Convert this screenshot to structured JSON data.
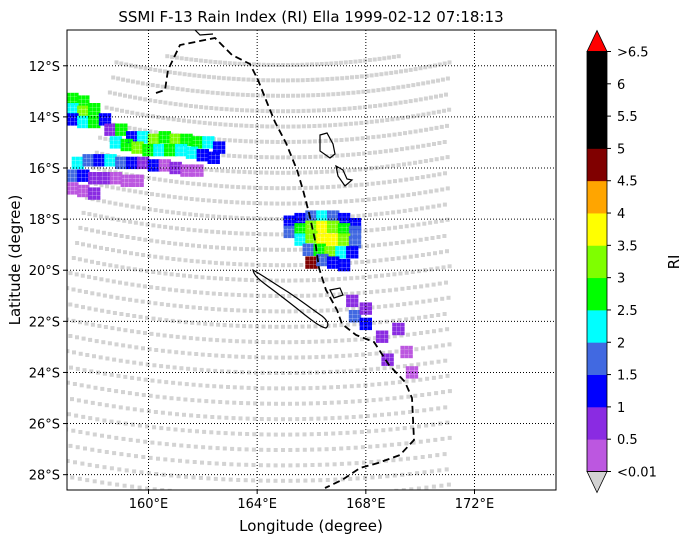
{
  "chart_data": {
    "type": "heatmap",
    "title": "SSMI F-13 Rain Index (RI) Ella 1999-02-12 07:18:13",
    "xlabel": "Longitude (degree)",
    "ylabel": "Latitude (degree)",
    "xlim": [
      157.0,
      175.0
    ],
    "ylim": [
      -28.6,
      -10.6
    ],
    "x_ticks": [
      {
        "value": 160,
        "label": "160°E"
      },
      {
        "value": 164,
        "label": "164°E"
      },
      {
        "value": 168,
        "label": "168°E"
      },
      {
        "value": 172,
        "label": "172°E"
      }
    ],
    "y_ticks": [
      {
        "value": -12,
        "label": "12°S"
      },
      {
        "value": -14,
        "label": "14°S"
      },
      {
        "value": -16,
        "label": "16°S"
      },
      {
        "value": -18,
        "label": "18°S"
      },
      {
        "value": -20,
        "label": "20°S"
      },
      {
        "value": -22,
        "label": "22°S"
      },
      {
        "value": -24,
        "label": "24°S"
      },
      {
        "value": -26,
        "label": "26°S"
      },
      {
        "value": -28,
        "label": "28°S"
      }
    ],
    "grid": "dotted",
    "colorbar": {
      "label": "RI",
      "colors": [
        "#d3d3d3",
        "#bc57e0",
        "#8a2be2",
        "#0000ff",
        "#4169e1",
        "#00ffff",
        "#00ff00",
        "#7fff00",
        "#ffff00",
        "#ffa500",
        "#800000",
        "#000000",
        "#000000",
        "#000000",
        "#ff0000"
      ],
      "tick_labels": [
        "<0.01",
        "0.5",
        "1",
        "1.5",
        "2",
        "2.5",
        "3",
        "3.5",
        "4",
        "4.5",
        "5",
        "5.5",
        "6",
        ">6.5"
      ]
    },
    "swath_color": "#d3d3d3",
    "rain_regions": [
      {
        "name": "northwest band",
        "cells": [
          [
            157.2,
            -13.3,
            6
          ],
          [
            157.6,
            -13.4,
            6
          ],
          [
            157.2,
            -13.7,
            5
          ],
          [
            157.6,
            -13.8,
            7
          ],
          [
            158.0,
            -13.7,
            6
          ],
          [
            157.2,
            -14.1,
            3
          ],
          [
            157.6,
            -14.2,
            5
          ],
          [
            158.0,
            -14.2,
            6
          ],
          [
            158.4,
            -14.1,
            3
          ],
          [
            158.6,
            -14.5,
            2
          ],
          [
            159.0,
            -14.5,
            6
          ],
          [
            159.4,
            -14.8,
            3
          ],
          [
            159.8,
            -14.8,
            5
          ],
          [
            160.2,
            -14.9,
            7
          ],
          [
            160.6,
            -14.8,
            6
          ],
          [
            161.0,
            -14.9,
            7
          ],
          [
            161.4,
            -14.9,
            6
          ],
          [
            161.8,
            -15.0,
            6
          ],
          [
            162.2,
            -15.0,
            5
          ],
          [
            162.6,
            -15.2,
            3
          ],
          [
            158.8,
            -15.0,
            5
          ],
          [
            159.2,
            -15.1,
            6
          ],
          [
            159.6,
            -15.2,
            7
          ],
          [
            160.0,
            -15.3,
            6
          ],
          [
            160.4,
            -15.3,
            5
          ],
          [
            160.8,
            -15.3,
            6
          ],
          [
            161.2,
            -15.3,
            5
          ],
          [
            161.6,
            -15.4,
            5
          ],
          [
            162.0,
            -15.5,
            3
          ],
          [
            162.4,
            -15.6,
            3
          ],
          [
            157.4,
            -15.8,
            5
          ],
          [
            157.8,
            -15.7,
            4
          ],
          [
            158.2,
            -15.7,
            3
          ],
          [
            158.6,
            -15.7,
            5
          ],
          [
            159.0,
            -15.8,
            4
          ],
          [
            159.4,
            -15.8,
            3
          ],
          [
            159.8,
            -15.8,
            2
          ],
          [
            160.2,
            -15.9,
            3
          ],
          [
            160.6,
            -15.9,
            1
          ],
          [
            161.0,
            -16.0,
            2
          ],
          [
            161.4,
            -16.1,
            1
          ],
          [
            161.8,
            -16.1,
            1
          ],
          [
            157.2,
            -16.3,
            4
          ],
          [
            157.6,
            -16.3,
            3
          ],
          [
            158.0,
            -16.4,
            2
          ],
          [
            158.4,
            -16.4,
            2
          ],
          [
            158.8,
            -16.4,
            1
          ],
          [
            159.2,
            -16.5,
            1
          ],
          [
            159.6,
            -16.5,
            1
          ],
          [
            157.2,
            -16.8,
            1
          ],
          [
            157.6,
            -16.9,
            1
          ],
          [
            158.0,
            -17.0,
            2
          ]
        ]
      },
      {
        "name": "storm core",
        "cells": [
          [
            165.2,
            -18.1,
            3
          ],
          [
            165.6,
            -18.0,
            3
          ],
          [
            166.0,
            -17.9,
            4
          ],
          [
            166.4,
            -17.9,
            5
          ],
          [
            166.8,
            -17.9,
            4
          ],
          [
            167.2,
            -18.0,
            3
          ],
          [
            167.6,
            -18.2,
            3
          ],
          [
            165.2,
            -18.5,
            4
          ],
          [
            165.6,
            -18.4,
            6
          ],
          [
            166.0,
            -18.3,
            7
          ],
          [
            166.4,
            -18.3,
            8
          ],
          [
            166.8,
            -18.3,
            7
          ],
          [
            167.2,
            -18.4,
            6
          ],
          [
            167.6,
            -18.5,
            4
          ],
          [
            165.6,
            -18.8,
            5
          ],
          [
            166.0,
            -18.7,
            7
          ],
          [
            166.4,
            -18.8,
            8
          ],
          [
            166.8,
            -18.8,
            8
          ],
          [
            167.2,
            -18.8,
            7
          ],
          [
            167.6,
            -18.9,
            4
          ],
          [
            165.9,
            -19.2,
            4
          ],
          [
            166.3,
            -19.2,
            6
          ],
          [
            166.7,
            -19.3,
            7
          ],
          [
            167.1,
            -19.3,
            5
          ],
          [
            167.5,
            -19.3,
            3
          ],
          [
            166.0,
            -19.7,
            10
          ],
          [
            166.4,
            -19.6,
            4
          ],
          [
            166.8,
            -19.7,
            3
          ],
          [
            167.2,
            -19.8,
            3
          ]
        ]
      },
      {
        "name": "southern tail",
        "cells": [
          [
            167.6,
            -21.8,
            4
          ],
          [
            168.0,
            -22.1,
            3
          ],
          [
            168.0,
            -21.5,
            2
          ],
          [
            168.6,
            -22.6,
            2
          ],
          [
            169.2,
            -22.3,
            2
          ],
          [
            169.5,
            -23.2,
            1
          ],
          [
            168.8,
            -23.5,
            2
          ],
          [
            169.7,
            -24.0,
            1
          ],
          [
            167.5,
            -21.2,
            2
          ]
        ]
      }
    ]
  }
}
